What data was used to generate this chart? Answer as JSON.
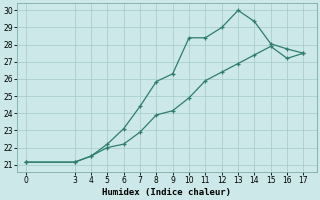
{
  "xlabel": "Humidex (Indice chaleur)",
  "bg_color": "#cce8e8",
  "line_color": "#2e7d6e",
  "grid_color": "#aacfcf",
  "xlim": [
    -0.5,
    17.8
  ],
  "ylim": [
    20.6,
    30.4
  ],
  "xticks": [
    0,
    3,
    4,
    5,
    6,
    7,
    8,
    9,
    10,
    11,
    12,
    13,
    14,
    15,
    16,
    17
  ],
  "yticks": [
    21,
    22,
    23,
    24,
    25,
    26,
    27,
    28,
    29,
    30
  ],
  "upper_x": [
    0,
    3,
    4,
    5,
    6,
    7,
    8,
    9,
    10,
    11,
    12,
    13,
    14,
    15,
    16,
    17
  ],
  "upper_y": [
    21.15,
    21.15,
    21.5,
    22.2,
    23.1,
    24.4,
    25.85,
    26.3,
    28.4,
    28.4,
    29.0,
    30.0,
    29.35,
    28.05,
    27.75,
    27.5
  ],
  "lower_x": [
    0,
    3,
    4,
    5,
    6,
    7,
    8,
    9,
    10,
    11,
    12,
    13,
    14,
    15,
    16,
    17
  ],
  "lower_y": [
    21.15,
    21.15,
    21.5,
    22.0,
    22.2,
    22.9,
    23.9,
    24.15,
    24.9,
    25.9,
    26.4,
    26.9,
    27.4,
    27.9,
    27.2,
    27.5
  ]
}
